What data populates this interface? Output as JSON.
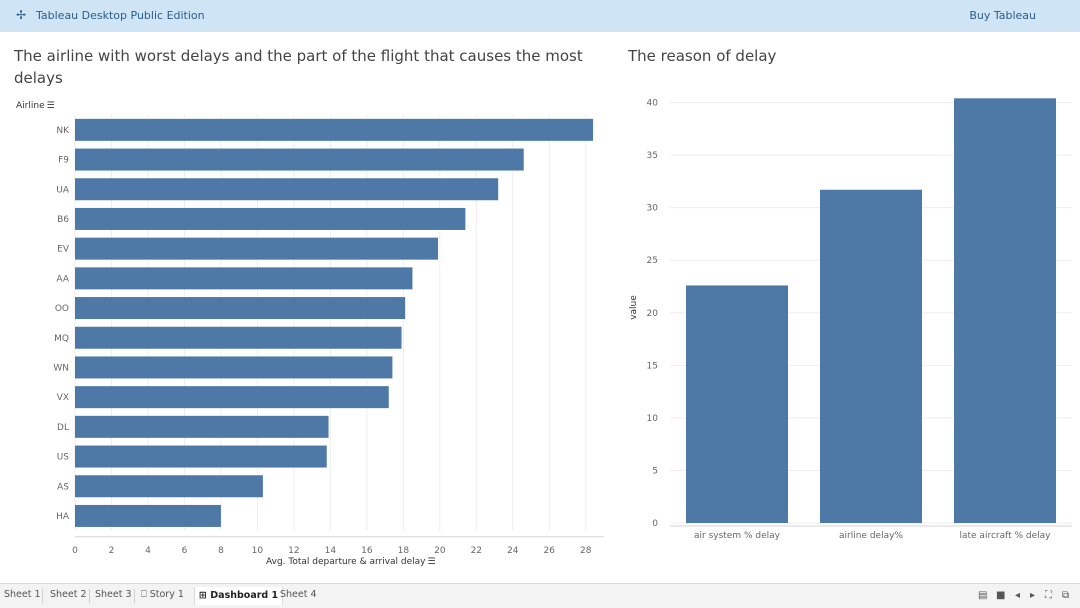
{
  "header": {
    "logo_icon": "tableau-logo-icon",
    "app_title": "Tableau Desktop Public Edition",
    "buy_label": "Buy Tableau"
  },
  "left_sheet": {
    "title_line1": "The airline with worst delays and the part of the flight that causes the most",
    "title_line2": "delays",
    "axis_title_y": "Airline",
    "axis_title_x": "Avg. Total departure & arrival delay"
  },
  "right_sheet": {
    "title": "The reason of delay",
    "axis_title_y": "value"
  },
  "chart_data": [
    {
      "type": "bar",
      "orientation": "horizontal",
      "categories": [
        "NK",
        "F9",
        "UA",
        "B6",
        "EV",
        "AA",
        "OO",
        "MQ",
        "WN",
        "VX",
        "DL",
        "US",
        "AS",
        "HA"
      ],
      "values": [
        28.4,
        24.6,
        23.2,
        21.4,
        19.9,
        18.5,
        18.1,
        17.9,
        17.4,
        17.2,
        13.9,
        13.8,
        10.3,
        8.0
      ],
      "xlabel": "Avg. Total departure & arrival delay",
      "ylabel": "Airline",
      "xlim": [
        0,
        29
      ],
      "xticks": [
        0,
        2,
        4,
        6,
        8,
        10,
        12,
        14,
        16,
        18,
        20,
        22,
        24,
        26,
        28
      ],
      "grid": true,
      "color": "#4e79a7"
    },
    {
      "type": "bar",
      "orientation": "vertical",
      "title": "The reason of delay",
      "categories": [
        "air system % delay",
        "airline delay%",
        "late aircraft % delay"
      ],
      "values": [
        22.6,
        31.7,
        40.4
      ],
      "ylabel": "value",
      "ylim": [
        0,
        41
      ],
      "yticks": [
        0,
        5,
        10,
        15,
        20,
        25,
        30,
        35,
        40
      ],
      "grid": true,
      "color": "#4e79a7"
    }
  ],
  "tabs": [
    {
      "label": "Sheet 1",
      "icon": ""
    },
    {
      "label": "Sheet 2",
      "icon": ""
    },
    {
      "label": "Sheet 3",
      "icon": ""
    },
    {
      "label": "Story 1",
      "icon": "story-icon"
    },
    {
      "label": "Dashboard 1",
      "icon": "dashboard-icon",
      "active": true
    },
    {
      "label": "Sheet 4",
      "icon": ""
    }
  ]
}
